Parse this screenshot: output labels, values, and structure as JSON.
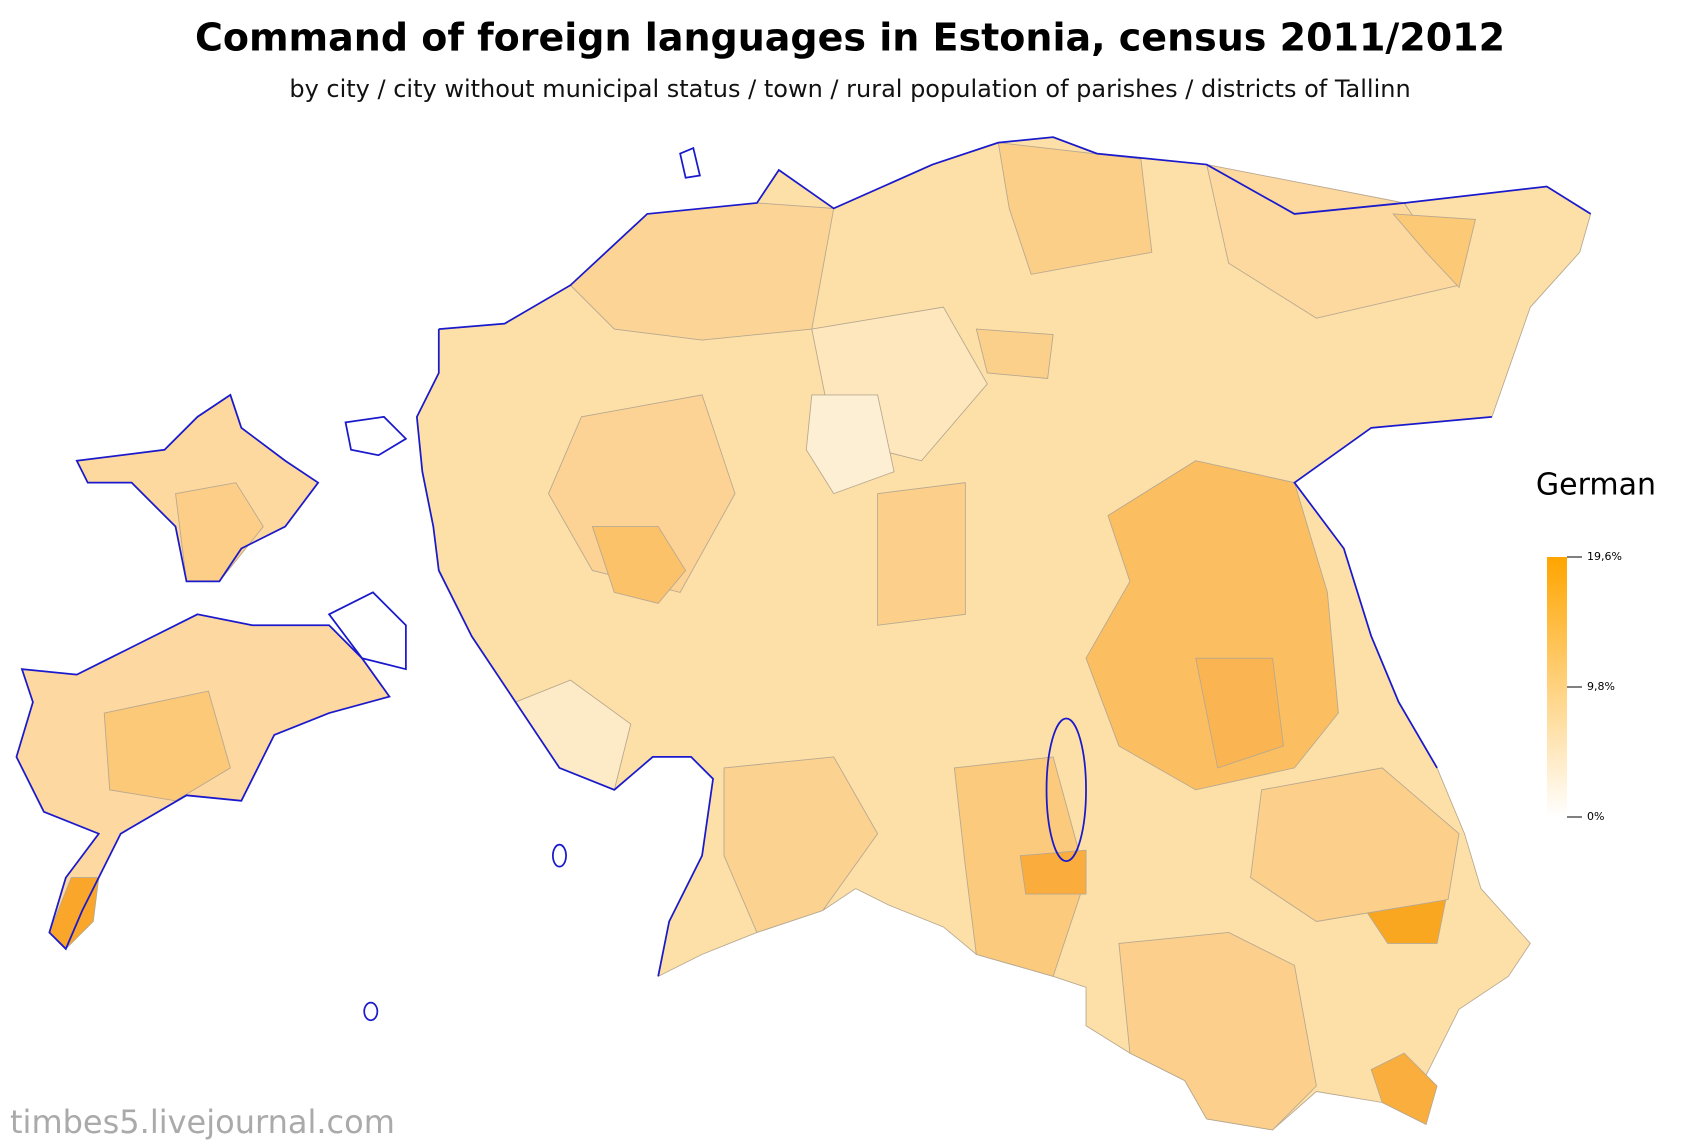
{
  "header": {
    "title": "Command of foreign languages in Estonia, census 2011/2012",
    "subtitle": "by city / city without municipal status / town / rural population of parishes / districts of Tallinn"
  },
  "legend": {
    "title": "German",
    "range": [
      0,
      19.6
    ],
    "colors": [
      "#ffffff",
      "#ffa500"
    ],
    "ticks": [
      {
        "value": 19.6,
        "label": "19,6%"
      },
      {
        "value": 9.8,
        "label": "9,8%"
      },
      {
        "value": 0,
        "label": "0%"
      }
    ]
  },
  "watermark": "timbes5.livejournal.com"
}
